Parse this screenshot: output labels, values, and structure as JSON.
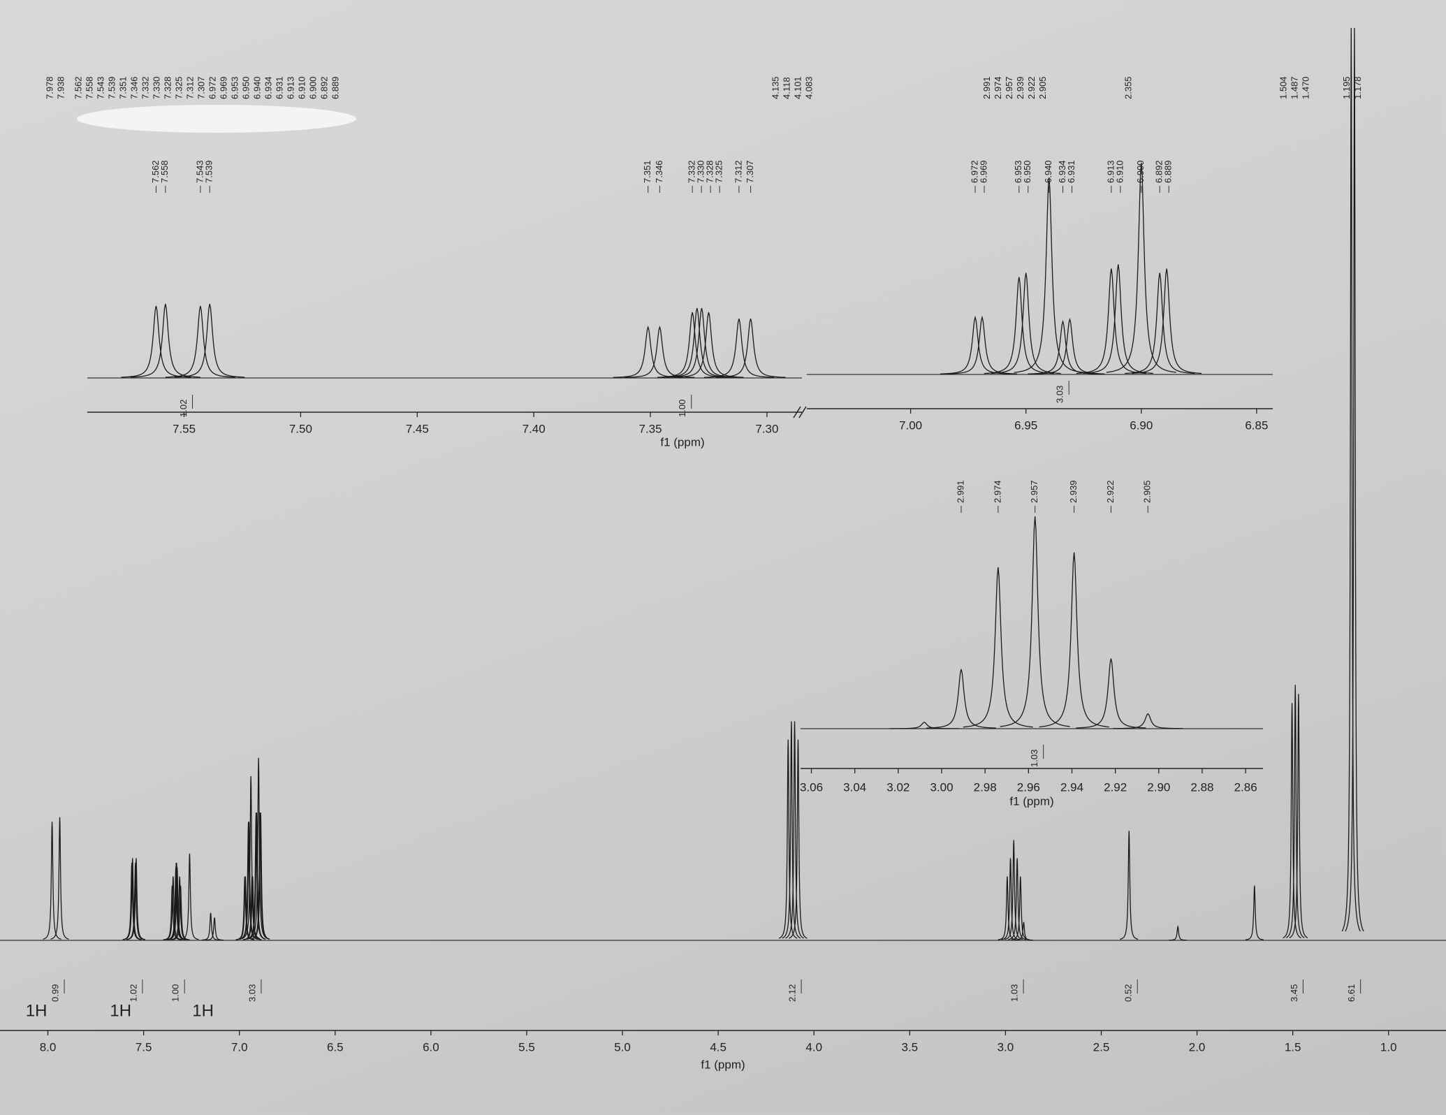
{
  "chart_data": [
    {
      "type": "spectrum",
      "xlabel": "f1 (ppm)",
      "color": "#1a1a1a",
      "xlim": [
        8.25,
        0.7
      ],
      "ylim": [
        0,
        100
      ],
      "xticks": [
        {
          "value": 8,
          "label": "8.0"
        },
        7.5,
        {
          "value": 7,
          "label": "7.0"
        },
        6.5,
        {
          "value": 6,
          "label": "6.0"
        },
        5.5,
        {
          "value": 5,
          "label": "5.0"
        },
        4.5,
        {
          "value": 4,
          "label": "4.0"
        },
        3.5,
        {
          "value": 3,
          "label": "3.0"
        },
        2.5,
        {
          "value": 2,
          "label": "2.0"
        },
        1.5,
        {
          "value": 1,
          "label": "1.0"
        }
      ],
      "x": [
        7.978,
        7.938,
        7.562,
        7.558,
        7.543,
        7.539,
        7.351,
        7.346,
        7.332,
        7.33,
        7.328,
        7.325,
        7.312,
        7.307,
        7.26,
        7.15,
        7.13,
        6.972,
        6.969,
        6.953,
        6.95,
        6.94,
        6.934,
        6.931,
        6.913,
        6.91,
        6.9,
        6.892,
        6.889,
        4.135,
        4.118,
        4.101,
        4.083,
        2.991,
        2.974,
        2.957,
        2.939,
        2.922,
        2.905,
        2.355,
        2.1,
        1.7,
        1.504,
        1.487,
        1.47,
        1.195,
        1.178
      ],
      "values": [
        13,
        13.5,
        8.5,
        9,
        8.5,
        9,
        6,
        7,
        8,
        8.5,
        8.5,
        8,
        7,
        6,
        9.5,
        3,
        2.5,
        7,
        7,
        13,
        13,
        18,
        7,
        7,
        14,
        14,
        20,
        14,
        14,
        22,
        24,
        24,
        22,
        7,
        9,
        11,
        9,
        7,
        2,
        12,
        1.5,
        6,
        26,
        28,
        27,
        100,
        100
      ],
      "peak_label_groups": [
        [
          "7.978",
          "7.938"
        ],
        [
          "7.562",
          "7.558",
          "7.543",
          "7.539",
          "7.351",
          "7.346",
          "7.332",
          "7.330",
          "7.328",
          "7.325",
          "7.312",
          "7.307",
          "6.972",
          "6.969",
          "6.953",
          "6.950",
          "6.940",
          "6.934",
          "6.931",
          "6.913",
          "6.910",
          "6.900",
          "6.892",
          "6.889"
        ],
        [
          "4.135",
          "4.118",
          "4.101",
          "4.083"
        ],
        [
          "2.991",
          "2.974",
          "2.957",
          "2.939",
          "2.922",
          "2.905"
        ],
        [
          "2.355"
        ],
        [
          "1.504",
          "1.487",
          "1.470"
        ],
        [
          "1.195",
          "1.178"
        ]
      ],
      "integrals": [
        {
          "x": 7.958,
          "label": "0.99"
        },
        {
          "x": 7.55,
          "label": "1.02"
        },
        {
          "x": 7.33,
          "label": "1.00"
        },
        {
          "x": 6.93,
          "label": "3.03"
        },
        {
          "x": 4.11,
          "label": "2.12"
        },
        {
          "x": 2.95,
          "label": "1.03"
        },
        {
          "x": 2.355,
          "label": "0.52"
        },
        {
          "x": 1.49,
          "label": "3.45"
        },
        {
          "x": 1.19,
          "label": "6.61"
        }
      ],
      "annotations": [
        {
          "x": 8.06,
          "text": "1H"
        },
        {
          "x": 7.62,
          "text": "1H"
        },
        {
          "x": 7.19,
          "text": "1H"
        }
      ]
    },
    {
      "type": "spectrum",
      "xlabel": "f1 (ppm)",
      "color": "#1a1a1a",
      "xlim": [
        7.5915,
        7.285
      ],
      "ylim": [
        0,
        100
      ],
      "xticks": [
        7.55,
        {
          "value": 7.5,
          "label": "7.50"
        },
        7.45,
        {
          "value": 7.4,
          "label": "7.40"
        },
        7.35,
        {
          "value": 7.3,
          "label": "7.30"
        }
      ],
      "x": [
        7.562,
        7.558,
        7.543,
        7.539,
        7.351,
        7.346,
        7.332,
        7.33,
        7.328,
        7.325,
        7.312,
        7.307
      ],
      "values": [
        34,
        35,
        34,
        35,
        24,
        24,
        31,
        33,
        33,
        31,
        28,
        28
      ],
      "peak_labels": [
        "7.562",
        "7.558",
        "7.543",
        "7.539",
        "7.351",
        "7.346",
        "7.332",
        "7.330",
        "7.328",
        "7.325",
        "7.312",
        "7.307"
      ],
      "integrals": [
        {
          "x": 7.55,
          "label": "1.02"
        },
        {
          "x": 7.336,
          "label": "1.00"
        }
      ]
    },
    {
      "type": "spectrum",
      "color": "#1a1a1a",
      "xlim": [
        7.045,
        6.843
      ],
      "ylim": [
        0,
        100
      ],
      "xticks": [
        {
          "value": 7,
          "label": "7.00"
        },
        6.95,
        {
          "value": 6.9,
          "label": "6.90"
        },
        6.85
      ],
      "x": [
        6.972,
        6.969,
        6.953,
        6.95,
        6.94,
        6.934,
        6.931,
        6.913,
        6.91,
        6.9,
        6.892,
        6.889
      ],
      "values": [
        27,
        27,
        46,
        48,
        93,
        25,
        26,
        50,
        52,
        100,
        48,
        50
      ],
      "peak_labels": [
        "6.972",
        "6.969",
        "6.953",
        "6.950",
        "6.940",
        "6.934",
        "6.931",
        "6.913",
        "6.910",
        "6.900",
        "6.892",
        "6.889"
      ],
      "integrals": [
        {
          "x": 6.935,
          "label": "3.03"
        }
      ]
    },
    {
      "type": "spectrum",
      "xlabel": "f1 (ppm)",
      "color": "#1a1a1a",
      "xlim": [
        3.065,
        2.852
      ],
      "ylim": [
        0,
        100
      ],
      "xticks": [
        3.06,
        3.04,
        3.02,
        {
          "value": 3,
          "label": "3.00"
        },
        2.98,
        2.96,
        2.94,
        2.92,
        {
          "value": 2.9,
          "label": "2.90"
        },
        2.88,
        2.86
      ],
      "x": [
        3.008,
        2.991,
        2.974,
        2.957,
        2.939,
        2.922,
        2.905
      ],
      "values": [
        3,
        28,
        76,
        100,
        83,
        33,
        7
      ],
      "peak_labels": [
        null,
        "2.991",
        "2.974",
        "2.957",
        "2.939",
        "2.922",
        "2.905"
      ],
      "integrals": [
        {
          "x": 2.957,
          "label": "1.03"
        }
      ]
    }
  ]
}
